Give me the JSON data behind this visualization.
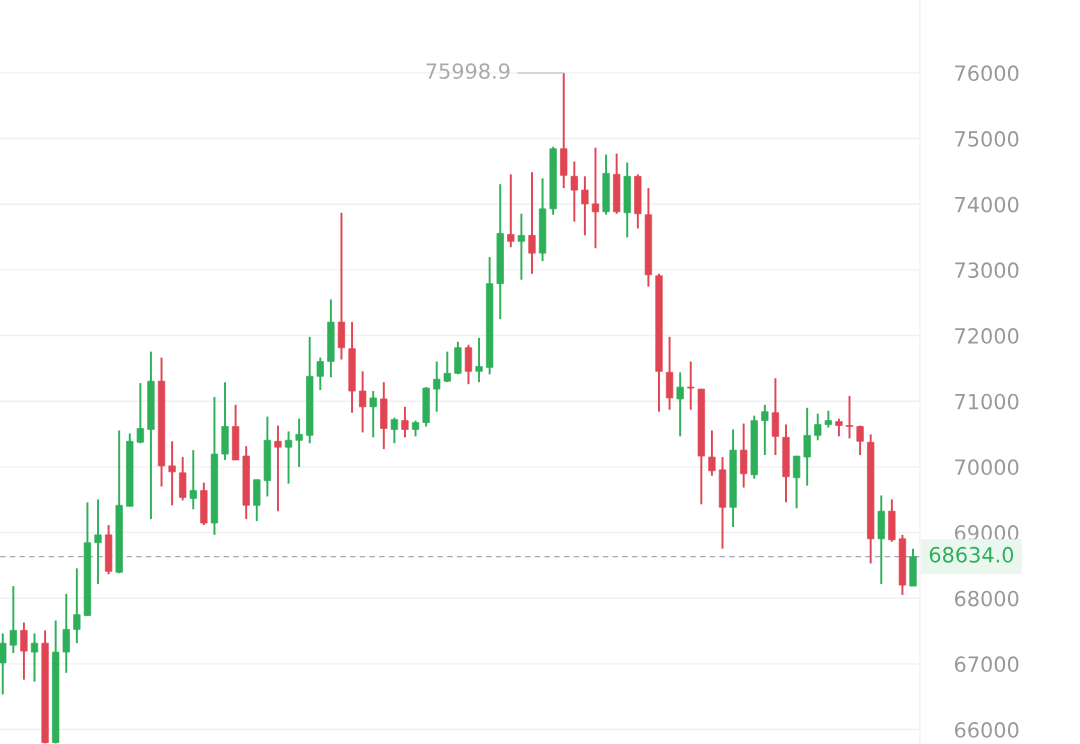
{
  "chart_data": {
    "type": "candlestick",
    "categories": [
      null,
      null,
      null,
      null,
      null,
      null,
      null,
      null,
      null,
      null,
      null,
      null,
      null,
      null,
      null,
      null,
      null,
      null,
      null,
      null,
      null,
      null,
      null,
      null,
      null,
      null,
      null,
      null,
      null,
      null,
      null,
      null,
      null,
      null,
      null,
      null,
      null,
      null,
      null,
      null,
      null,
      null,
      null,
      null,
      null,
      null,
      null,
      null,
      null,
      null,
      null,
      null,
      null,
      null,
      null,
      null,
      null,
      null,
      null,
      null,
      null,
      null,
      null,
      null,
      null,
      null,
      null,
      null,
      null,
      null,
      null,
      null,
      null,
      null,
      null,
      null,
      null,
      null,
      null,
      null,
      null,
      null,
      null,
      null,
      null,
      null,
      null
    ],
    "ohlc": [
      [
        67015,
        67465,
        66535,
        67315
      ],
      [
        67285,
        68185,
        67165,
        67510
      ],
      [
        67510,
        67630,
        66760,
        67195
      ],
      [
        67180,
        67465,
        66730,
        67315
      ],
      [
        67315,
        67510,
        65790,
        65800
      ],
      [
        65800,
        67660,
        65790,
        67180
      ],
      [
        67180,
        68065,
        66865,
        67525
      ],
      [
        67525,
        68455,
        67315,
        67750
      ],
      [
        67735,
        69460,
        67735,
        68845
      ],
      [
        68845,
        69505,
        68215,
        68965
      ],
      [
        68965,
        69115,
        68365,
        68410
      ],
      [
        68395,
        70555,
        68380,
        69415
      ],
      [
        69400,
        70510,
        69400,
        70390
      ],
      [
        70375,
        71275,
        70360,
        70585
      ],
      [
        70570,
        71755,
        69205,
        71305
      ],
      [
        71305,
        71665,
        69700,
        70015
      ],
      [
        70015,
        70390,
        69415,
        69925
      ],
      [
        69910,
        70150,
        69490,
        69535
      ],
      [
        69520,
        70255,
        69355,
        69640
      ],
      [
        69640,
        69760,
        69115,
        69145
      ],
      [
        69145,
        71065,
        68965,
        70195
      ],
      [
        70195,
        71290,
        70105,
        70615
      ],
      [
        70615,
        70945,
        70105,
        70105
      ],
      [
        70165,
        70315,
        69205,
        69415
      ],
      [
        69415,
        69805,
        69175,
        69805
      ],
      [
        69790,
        70765,
        69550,
        70405
      ],
      [
        70390,
        70630,
        69325,
        70300
      ],
      [
        70300,
        70540,
        69745,
        70405
      ],
      [
        70405,
        70735,
        70000,
        70495
      ],
      [
        70480,
        71980,
        70360,
        71380
      ],
      [
        71380,
        71665,
        71170,
        71605
      ],
      [
        71605,
        72550,
        71365,
        72205
      ],
      [
        72205,
        73870,
        71635,
        71815
      ],
      [
        71800,
        72205,
        70825,
        71155
      ],
      [
        71155,
        71455,
        70525,
        70915
      ],
      [
        70915,
        71155,
        70450,
        71050
      ],
      [
        71035,
        71290,
        70270,
        70585
      ],
      [
        70570,
        70750,
        70360,
        70720
      ],
      [
        70705,
        70915,
        70450,
        70570
      ],
      [
        70570,
        70705,
        70465,
        70675
      ],
      [
        70675,
        71215,
        70615,
        71200
      ],
      [
        71185,
        71605,
        70840,
        71335
      ],
      [
        71305,
        71755,
        71290,
        71425
      ],
      [
        71425,
        71905,
        71410,
        71815
      ],
      [
        71815,
        71860,
        71260,
        71455
      ],
      [
        71455,
        71965,
        71290,
        71530
      ],
      [
        71515,
        73195,
        71410,
        72790
      ],
      [
        72790,
        74305,
        72250,
        73555
      ],
      [
        73540,
        74455,
        73345,
        73435
      ],
      [
        73435,
        73855,
        72850,
        73525
      ],
      [
        73525,
        74485,
        72940,
        73255
      ],
      [
        73255,
        74395,
        73135,
        73930
      ],
      [
        73930,
        74875,
        73840,
        74845
      ],
      [
        74845,
        75998.9,
        74245,
        74440
      ],
      [
        74425,
        74650,
        73735,
        74215
      ],
      [
        74215,
        74425,
        73525,
        74005
      ],
      [
        74005,
        74860,
        73330,
        73885
      ],
      [
        73885,
        74755,
        73840,
        74470
      ],
      [
        74455,
        74770,
        73855,
        73885
      ],
      [
        73870,
        74635,
        73495,
        74425
      ],
      [
        74425,
        74455,
        73630,
        73855
      ],
      [
        73840,
        74245,
        72745,
        72925
      ],
      [
        72910,
        72940,
        70840,
        71455
      ],
      [
        71440,
        71980,
        70870,
        71050
      ],
      [
        71035,
        71440,
        70465,
        71215
      ],
      [
        71215,
        71605,
        70870,
        71200
      ],
      [
        71185,
        71185,
        69430,
        70165
      ],
      [
        70150,
        70555,
        69865,
        69940
      ],
      [
        69955,
        70150,
        68755,
        69385
      ],
      [
        69385,
        70570,
        69085,
        70255
      ],
      [
        70255,
        70660,
        69685,
        69895
      ],
      [
        69880,
        70780,
        69820,
        70705
      ],
      [
        70705,
        70945,
        70180,
        70840
      ],
      [
        70825,
        71350,
        70180,
        70465
      ],
      [
        70450,
        70645,
        69460,
        69850
      ],
      [
        69835,
        70165,
        69370,
        70165
      ],
      [
        70150,
        70900,
        69715,
        70480
      ],
      [
        70480,
        70810,
        70405,
        70645
      ],
      [
        70645,
        70855,
        70600,
        70705
      ],
      [
        70690,
        70735,
        70465,
        70630
      ],
      [
        70630,
        71080,
        70435,
        70615
      ],
      [
        70615,
        70630,
        70180,
        70390
      ],
      [
        70375,
        70495,
        68530,
        68905
      ],
      [
        68905,
        69565,
        68215,
        69325
      ],
      [
        69325,
        69505,
        68860,
        68890
      ],
      [
        68905,
        68965,
        68050,
        68200
      ],
      [
        68185,
        68755,
        68185,
        68634
      ]
    ],
    "colors": [
      "#2eaf5a",
      "#2eaf5a",
      "#e04553",
      "#2eaf5a",
      "#e04553",
      "#2eaf5a",
      "#2eaf5a",
      "#2eaf5a",
      "#2eaf5a",
      "#2eaf5a",
      "#e04553",
      "#2eaf5a",
      "#2eaf5a",
      "#2eaf5a",
      "#2eaf5a",
      "#e04553",
      "#e04553",
      "#e04553",
      "#2eaf5a",
      "#e04553",
      "#2eaf5a",
      "#2eaf5a",
      "#e04553",
      "#e04553",
      "#2eaf5a",
      "#2eaf5a",
      "#e04553",
      "#2eaf5a",
      "#2eaf5a",
      "#2eaf5a",
      "#2eaf5a",
      "#2eaf5a",
      "#e04553",
      "#e04553",
      "#e04553",
      "#2eaf5a",
      "#e04553",
      "#2eaf5a",
      "#e04553",
      "#2eaf5a",
      "#2eaf5a",
      "#2eaf5a",
      "#2eaf5a",
      "#2eaf5a",
      "#e04553",
      "#2eaf5a",
      "#2eaf5a",
      "#2eaf5a",
      "#e04553",
      "#2eaf5a",
      "#e04553",
      "#2eaf5a",
      "#2eaf5a",
      "#e04553",
      "#e04553",
      "#e04553",
      "#e04553",
      "#2eaf5a",
      "#e04553",
      "#2eaf5a",
      "#e04553",
      "#e04553",
      "#e04553",
      "#e04553",
      "#2eaf5a",
      "#e04553",
      "#e04553",
      "#e04553",
      "#e04553",
      "#2eaf5a",
      "#e04553",
      "#2eaf5a",
      "#2eaf5a",
      "#e04553",
      "#e04553",
      "#2eaf5a",
      "#2eaf5a",
      "#2eaf5a",
      "#2eaf5a",
      "#e04553",
      "#e04553",
      "#e04553",
      "#e04553",
      "#2eaf5a",
      "#e04553",
      "#e04553",
      "#2eaf5a"
    ],
    "ylim": [
      65780,
      77110
    ],
    "yticks": [
      66000,
      67000,
      68000,
      69000,
      70000,
      71000,
      72000,
      73000,
      74000,
      75000,
      76000
    ],
    "grid": "y",
    "ref_lines": [
      {
        "axis": "y",
        "value": 68634,
        "label": "68634.0",
        "color": "#aaaaaa",
        "line_style": "dashed"
      }
    ],
    "annotations": [
      "75998.9"
    ]
  }
}
